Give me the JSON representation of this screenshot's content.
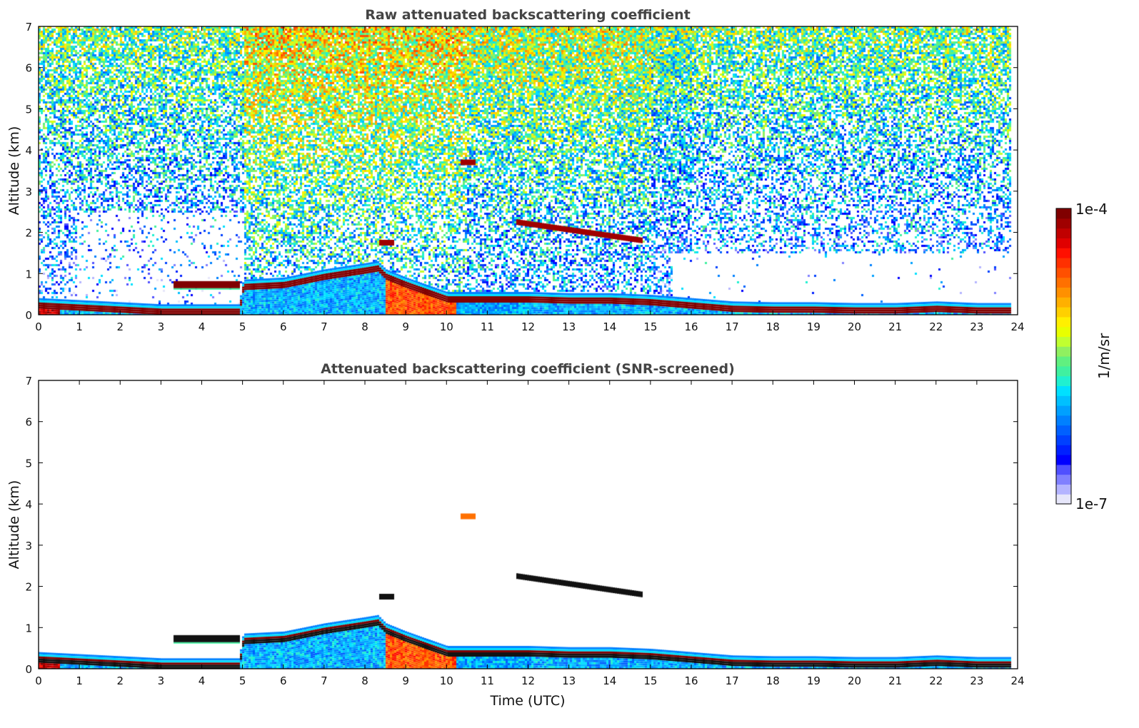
{
  "chart_data": [
    {
      "type": "heatmap",
      "title": "Raw attenuated backscattering coefficient",
      "xlabel": "",
      "ylabel": "Altitude (km)",
      "xlim": [
        0,
        24
      ],
      "ylim": [
        0,
        7
      ],
      "xticks": [
        "0",
        "1",
        "2",
        "3",
        "4",
        "5",
        "6",
        "7",
        "8",
        "9",
        "10",
        "11",
        "12",
        "13",
        "14",
        "15",
        "16",
        "17",
        "18",
        "19",
        "20",
        "21",
        "22",
        "23",
        "24"
      ],
      "yticks": [
        "0",
        "1",
        "2",
        "3",
        "4",
        "5",
        "6",
        "7"
      ],
      "data_end_time": 23.8,
      "features": {
        "boundary_layer_top": [
          {
            "t": 0,
            "h": 0.3
          },
          {
            "t": 1,
            "h": 0.25
          },
          {
            "t": 2,
            "h": 0.2
          },
          {
            "t": 3,
            "h": 0.15
          },
          {
            "t": 4,
            "h": 0.15
          },
          {
            "t": 4.9,
            "h": 0.15
          },
          {
            "t": 5,
            "h": 0.75
          },
          {
            "t": 6,
            "h": 0.8
          },
          {
            "t": 7,
            "h": 1.0
          },
          {
            "t": 8,
            "h": 1.15
          },
          {
            "t": 8.3,
            "h": 1.2
          },
          {
            "t": 8.5,
            "h": 1.0
          },
          {
            "t": 9,
            "h": 0.8
          },
          {
            "t": 10,
            "h": 0.45
          },
          {
            "t": 11,
            "h": 0.45
          },
          {
            "t": 12,
            "h": 0.45
          },
          {
            "t": 13,
            "h": 0.42
          },
          {
            "t": 14,
            "h": 0.42
          },
          {
            "t": 15,
            "h": 0.38
          },
          {
            "t": 16,
            "h": 0.3
          },
          {
            "t": 17,
            "h": 0.22
          },
          {
            "t": 18,
            "h": 0.2
          },
          {
            "t": 19,
            "h": 0.2
          },
          {
            "t": 20,
            "h": 0.18
          },
          {
            "t": 21,
            "h": 0.18
          },
          {
            "t": 22,
            "h": 0.22
          },
          {
            "t": 23,
            "h": 0.18
          },
          {
            "t": 23.8,
            "h": 0.18
          }
        ],
        "residual_layer": [
          {
            "t": 3.3,
            "h": 0.73
          },
          {
            "t": 4,
            "h": 0.73
          },
          {
            "t": 4.9,
            "h": 0.73
          }
        ],
        "elevated_layers": [
          {
            "t_start": 8.3,
            "t_end": 8.7,
            "h": 1.75
          },
          {
            "t_start": 10.3,
            "t_end": 10.7,
            "h": 3.7
          },
          {
            "t_start": 11.7,
            "t_end": 14.8,
            "h_start": 2.25,
            "h_end": 1.8
          }
        ]
      }
    },
    {
      "type": "heatmap",
      "title": "Attenuated backscattering coefficient (SNR-screened)",
      "xlabel": "Time (UTC)",
      "ylabel": "Altitude (km)",
      "xlim": [
        0,
        24
      ],
      "ylim": [
        0,
        7
      ],
      "xticks": [
        "0",
        "1",
        "2",
        "3",
        "4",
        "5",
        "6",
        "7",
        "8",
        "9",
        "10",
        "11",
        "12",
        "13",
        "14",
        "15",
        "16",
        "17",
        "18",
        "19",
        "20",
        "21",
        "22",
        "23",
        "24"
      ],
      "yticks": [
        "0",
        "1",
        "2",
        "3",
        "4",
        "5",
        "6",
        "7"
      ]
    }
  ],
  "colorbar": {
    "max_label": "1e-4",
    "min_label": "1e-7",
    "unit_label": "1/m/sr",
    "colors": [
      "#e6e6fa",
      "#b4b4ff",
      "#8080ff",
      "#5050ff",
      "#0000ff",
      "#0020ff",
      "#0040ff",
      "#0060ff",
      "#0080ff",
      "#00a0ff",
      "#00c0ff",
      "#00e0ff",
      "#20f0d0",
      "#40f0a0",
      "#60f080",
      "#90f060",
      "#c0ff30",
      "#e8ff00",
      "#fff000",
      "#ffd000",
      "#ffb000",
      "#ff9000",
      "#ff7000",
      "#ff5000",
      "#ff3000",
      "#ff1000",
      "#e00000",
      "#c00000",
      "#a00000",
      "#800000"
    ]
  }
}
